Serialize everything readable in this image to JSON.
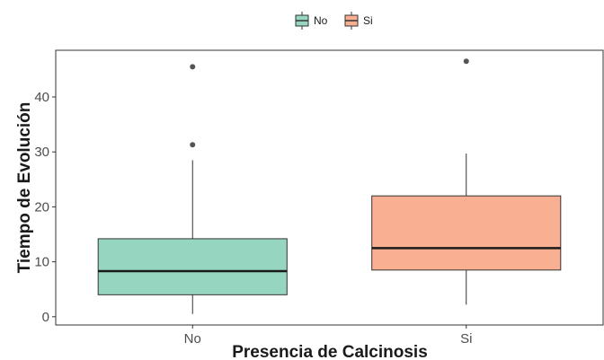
{
  "chart_data": {
    "type": "boxplot",
    "xlabel": "Presencia de Calcinosis",
    "ylabel": "Tiempo de Evolución",
    "categories": [
      "No",
      "Si"
    ],
    "ylim": [
      -1.5,
      48.5
    ],
    "yticks": [
      0,
      10,
      20,
      30,
      40
    ],
    "grid": false,
    "legend": {
      "position": "top",
      "entries": [
        {
          "label": "No",
          "color": "#96d5c0"
        },
        {
          "label": "Si",
          "color": "#f9af91"
        }
      ]
    },
    "boxes": [
      {
        "category": "No",
        "color": "#96d5c0",
        "whisker_low": 0.5,
        "q1": 4,
        "median": 8.3,
        "q3": 14.2,
        "whisker_high": 28.5,
        "outliers": [
          31.3,
          45.5
        ]
      },
      {
        "category": "Si",
        "color": "#f9af91",
        "whisker_low": 2.2,
        "q1": 8.5,
        "median": 12.5,
        "q3": 22,
        "whisker_high": 29.7,
        "outliers": [
          46.5
        ]
      }
    ]
  }
}
